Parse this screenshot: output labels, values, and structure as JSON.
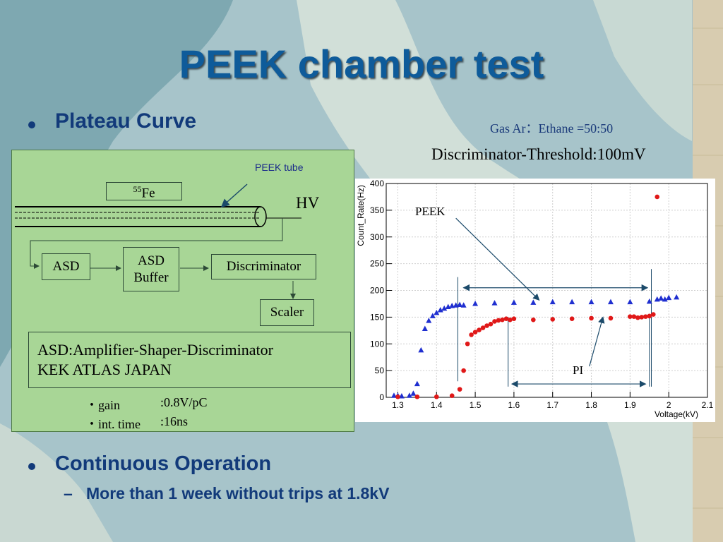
{
  "slide": {
    "title": "PEEK chamber test",
    "bullet1": "Plateau Curve",
    "bullet2": "Continuous Operation",
    "sub_dash": "–",
    "sub_bullet": "More than 1 week without trips at 1.8kV",
    "gas_note": "Gas Ar：Ethane =50:50",
    "threshold_note": "Discriminator-Threshold:100mV"
  },
  "diagram": {
    "peek_tube_label": "PEEK tube",
    "fe_label": "Fe",
    "fe_mass": "55",
    "hv_label": "HV",
    "asd_label": "ASD",
    "asd_buffer_label": "ASD Buffer",
    "discriminator_label": "Discriminator",
    "scaler_label": "Scaler",
    "info_line1": "ASD:Amplifier-Shaper-Discriminator",
    "info_line2": "KEK ATLAS JAPAN",
    "gain_key": "・gain",
    "gain_value": ":0.8V/pC",
    "time_key": "・int. time",
    "time_value": ":16ns"
  },
  "colors": {
    "title": "#0e5b9a",
    "text": "#123a7a",
    "diagram_bg": "#a8d696",
    "peek": "#1f2fd0",
    "pi": "#e01818",
    "arrow": "#1b4a6a"
  },
  "chart_data": {
    "type": "scatter",
    "xlabel": "Voltage(kV)",
    "ylabel": "Count_Rate(Hz)",
    "xlim": [
      1.27,
      2.1
    ],
    "ylim": [
      0,
      400
    ],
    "xticks": [
      1.3,
      1.4,
      1.5,
      1.6,
      1.7,
      1.8,
      1.9,
      2.0,
      2.1
    ],
    "xtick_labels": [
      "1.3",
      "1.4",
      "1.5",
      "1.6",
      "1.7",
      "1.8",
      "1.9",
      "2",
      "2.1"
    ],
    "yticks": [
      0,
      50,
      100,
      150,
      200,
      250,
      300,
      350,
      400
    ],
    "grid": true,
    "annotations": [
      "PEEK",
      "PI"
    ],
    "series": [
      {
        "name": "PEEK",
        "marker": "triangle",
        "color": "#1f2fd0",
        "x": [
          1.29,
          1.3,
          1.31,
          1.33,
          1.34,
          1.35,
          1.36,
          1.37,
          1.38,
          1.39,
          1.4,
          1.41,
          1.42,
          1.43,
          1.44,
          1.45,
          1.46,
          1.47,
          1.5,
          1.55,
          1.6,
          1.65,
          1.7,
          1.75,
          1.8,
          1.85,
          1.9,
          1.95,
          1.97,
          1.98,
          1.99,
          2.0,
          2.02
        ],
        "y": [
          3,
          3,
          2,
          3,
          7,
          25,
          88,
          128,
          143,
          152,
          158,
          163,
          166,
          169,
          171,
          172,
          173,
          172,
          175,
          176,
          177,
          177,
          178,
          178,
          178,
          178,
          178,
          179,
          183,
          185,
          183,
          186,
          187
        ]
      },
      {
        "name": "PI",
        "marker": "circle",
        "color": "#e01818",
        "x": [
          1.3,
          1.35,
          1.4,
          1.44,
          1.46,
          1.47,
          1.48,
          1.49,
          1.5,
          1.51,
          1.52,
          1.53,
          1.54,
          1.55,
          1.56,
          1.57,
          1.58,
          1.59,
          1.6,
          1.65,
          1.7,
          1.75,
          1.8,
          1.85,
          1.9,
          1.91,
          1.92,
          1.93,
          1.94,
          1.95,
          1.96,
          1.97
        ],
        "y": [
          1,
          1,
          1,
          3,
          15,
          50,
          100,
          117,
          122,
          126,
          130,
          134,
          137,
          142,
          144,
          145,
          147,
          145,
          147,
          145,
          146,
          147,
          148,
          148,
          151,
          151,
          149,
          150,
          151,
          152,
          155,
          375
        ]
      }
    ]
  }
}
